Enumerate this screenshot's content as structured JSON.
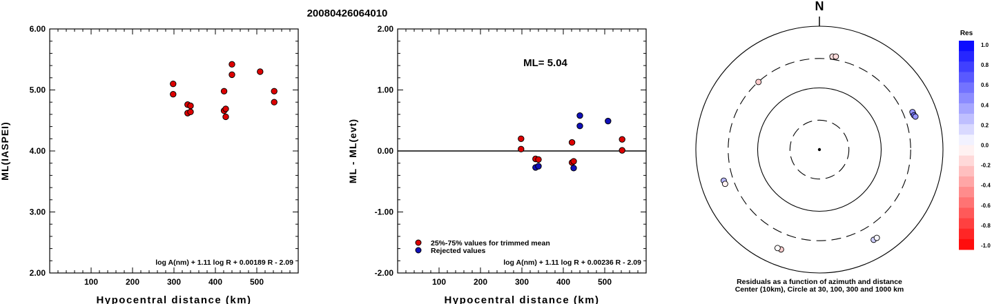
{
  "title": "20080426064010",
  "colors": {
    "red_marker": "#dd0000",
    "blue_marker": "#1010b8",
    "axis": "#000000"
  },
  "chart_data": [
    {
      "type": "scatter",
      "ylabel": "ML(IASPEI)",
      "xlabel": "Hypocentral distance (km)",
      "xlim": [
        0,
        600
      ],
      "ylim": [
        2.0,
        6.0
      ],
      "xticks": [
        "100",
        "200",
        "300",
        "400",
        "500"
      ],
      "yticks": [
        "2.00",
        "3.00",
        "4.00",
        "5.00",
        "6.00"
      ],
      "formula": "log A(nm) + 1.11 log R + 0.00189 R - 2.09",
      "points": [
        {
          "x": 298,
          "y": 5.1
        },
        {
          "x": 298,
          "y": 4.93
        },
        {
          "x": 333,
          "y": 4.76
        },
        {
          "x": 333,
          "y": 4.62
        },
        {
          "x": 340,
          "y": 4.74
        },
        {
          "x": 340,
          "y": 4.64
        },
        {
          "x": 421,
          "y": 4.98
        },
        {
          "x": 421,
          "y": 4.66
        },
        {
          "x": 425,
          "y": 4.69
        },
        {
          "x": 425,
          "y": 4.56
        },
        {
          "x": 440,
          "y": 5.42
        },
        {
          "x": 440,
          "y": 5.25
        },
        {
          "x": 508,
          "y": 5.3
        },
        {
          "x": 542,
          "y": 4.98
        },
        {
          "x": 542,
          "y": 4.8
        }
      ]
    },
    {
      "type": "scatter",
      "ylabel": "ML - ML(evt)",
      "xlabel": "Hypocentral distance (km)",
      "xlim": [
        0,
        600
      ],
      "ylim": [
        -2.0,
        2.0
      ],
      "xticks": [
        "100",
        "200",
        "300",
        "400",
        "500"
      ],
      "yticks": [
        "-2.00",
        "-1.00",
        "0.00",
        "1.00",
        "2.00"
      ],
      "annotation": "ML= 5.04",
      "formula": "log A(nm) + 1.11 log R + 0.00236 R - 2.09",
      "legend": [
        {
          "label": "25%-75% values for trimmed mean",
          "color": "red"
        },
        {
          "label": "Rejected values",
          "color": "blue"
        }
      ],
      "series": [
        {
          "name": "25%-75% values for trimmed mean",
          "color": "red",
          "points": [
            {
              "x": 298,
              "y": 0.2
            },
            {
              "x": 298,
              "y": 0.03
            },
            {
              "x": 333,
              "y": -0.13
            },
            {
              "x": 340,
              "y": -0.14
            },
            {
              "x": 421,
              "y": 0.14
            },
            {
              "x": 421,
              "y": -0.19
            },
            {
              "x": 425,
              "y": -0.17
            },
            {
              "x": 542,
              "y": 0.19
            },
            {
              "x": 542,
              "y": 0.01
            }
          ]
        },
        {
          "name": "Rejected values",
          "color": "blue",
          "points": [
            {
              "x": 333,
              "y": -0.27
            },
            {
              "x": 340,
              "y": -0.25
            },
            {
              "x": 425,
              "y": -0.28
            },
            {
              "x": 440,
              "y": 0.58
            },
            {
              "x": 440,
              "y": 0.41
            },
            {
              "x": 508,
              "y": 0.49
            }
          ]
        }
      ]
    },
    {
      "type": "scatter",
      "subtype": "polar",
      "north_label": "N",
      "caption_line1": "Residuals as a function of azimuth and distance",
      "caption_line2": "Center (10km), Circle at 30, 100, 300 and 1000 km",
      "colorbar": {
        "title": "Res",
        "ticks": [
          "1.0",
          "0.8",
          "0.6",
          "0.4",
          "0.2",
          "0.0",
          "-0.2",
          "-0.4",
          "-0.6",
          "-0.8",
          "-1.0"
        ],
        "range": [
          -1.0,
          1.0
        ]
      },
      "points": [
        {
          "azimuth": 318,
          "distance": 298,
          "residual": -0.2
        },
        {
          "azimuth": 8,
          "distance": 333,
          "residual": -0.13
        },
        {
          "azimuth": 10,
          "distance": 340,
          "residual": -0.14
        },
        {
          "azimuth": 69,
          "distance": 421,
          "residual": 0.26
        },
        {
          "azimuth": 68,
          "distance": 421,
          "residual": 0.42
        },
        {
          "azimuth": 70,
          "distance": 425,
          "residual": 0.58
        },
        {
          "azimuth": 71,
          "distance": 440,
          "residual": 0.41
        },
        {
          "azimuth": 252,
          "distance": 425,
          "residual": 0.28
        },
        {
          "azimuth": 250,
          "distance": 421,
          "residual": -0.05
        },
        {
          "azimuth": 201,
          "distance": 542,
          "residual": -0.19
        },
        {
          "azimuth": 203,
          "distance": 542,
          "residual": -0.01
        },
        {
          "azimuth": 149,
          "distance": 508,
          "residual": 0.19
        },
        {
          "azimuth": 147,
          "distance": 508,
          "residual": 0.03
        }
      ]
    }
  ]
}
